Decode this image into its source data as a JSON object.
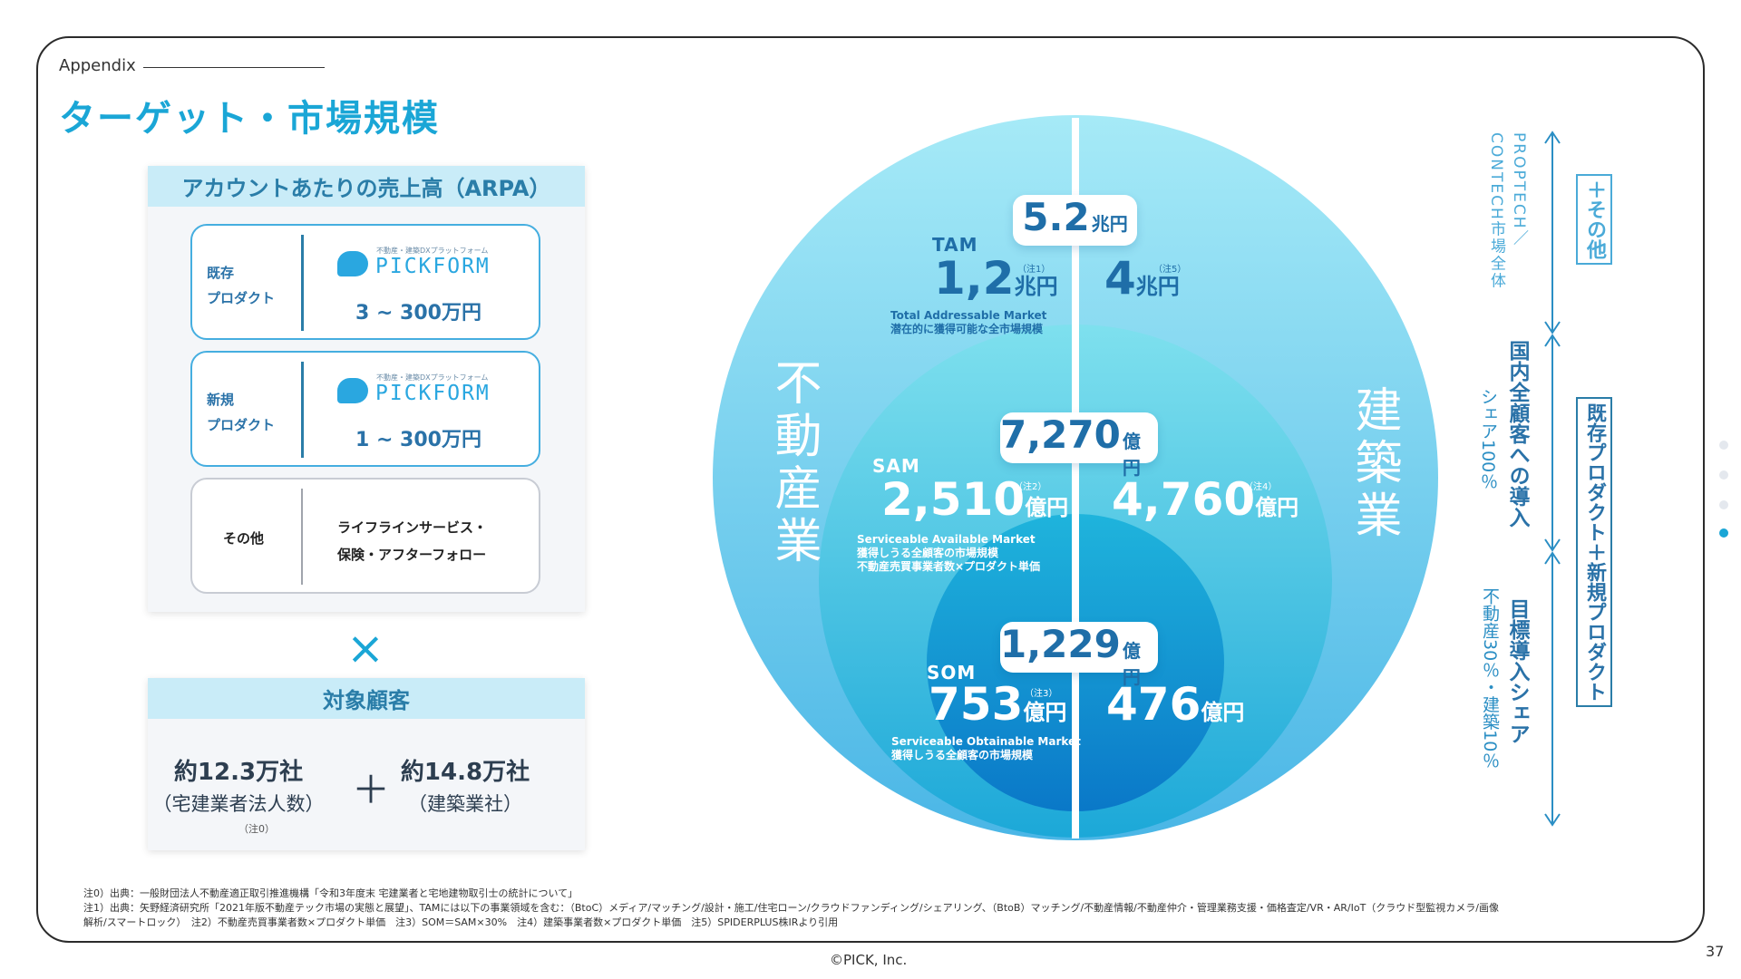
{
  "header": {
    "appendix": "Appendix",
    "title": "ターゲット・市場規模"
  },
  "arpa": {
    "heading": "アカウントあたりの売上高（ARPA）",
    "products": [
      {
        "label_line1": "既存",
        "label_line2": "プロダクト",
        "tagline": "不動産・建築DXプラットフォーム",
        "brand": "PICKFORM",
        "price": "3 ~ 300万円"
      },
      {
        "label_line1": "新規",
        "label_line2": "プロダクト",
        "tagline": "不動産・建築DXプラットフォーム",
        "brand": "PICKFORM",
        "price": "1 ~ 300万円"
      }
    ],
    "other": {
      "label": "その他",
      "desc_line1": "ライフラインサービス・",
      "desc_line2": "保険・アフターフォロー"
    }
  },
  "times_symbol": "×",
  "customers": {
    "heading": "対象顧客",
    "left_value": "約12.3万社",
    "left_sub": "（宅建業者法人数）",
    "left_note": "（注0）",
    "plus": "＋",
    "right_value": "約14.8万社",
    "right_sub": "（建築業社）"
  },
  "market": {
    "left_industry": "不動産業",
    "right_industry": "建築業",
    "tam": {
      "label": "TAM",
      "total": "5.2",
      "total_unit": "兆円",
      "left": "1,2",
      "left_unit": "兆円",
      "left_note": "（注1）",
      "right": "4",
      "right_unit": "兆円",
      "right_note": "（注5）",
      "desc1": "Total Addressable Market",
      "desc2": "潜在的に獲得可能な全市場規模"
    },
    "sam": {
      "label": "SAM",
      "total": "7,270",
      "total_unit": "億円",
      "left": "2,510",
      "left_unit": "億円",
      "left_note": "（注2）",
      "right": "4,760",
      "right_unit": "億円",
      "right_note": "（注4）",
      "desc1": "Serviceable Available Market",
      "desc2": "獲得しうる全顧客の市場規模",
      "desc3": "不動産売買事業者数×プロダクト単価"
    },
    "som": {
      "label": "SOM",
      "total": "1,229",
      "total_unit": "億円",
      "left": "753",
      "left_unit": "億円",
      "left_note": "（注3）",
      "right": "476",
      "right_unit": "億円",
      "desc1": "Serviceable Obtainable Market",
      "desc2": "獲得しうる全顧客の市場規模"
    }
  },
  "side": {
    "contech": "CONTECH市場全体",
    "proptech": "PROPTECH／",
    "plus_other": "＋その他",
    "share100": "シェア100％",
    "domestic": "国内全顧客への導入",
    "existing_new": "既存プロダクト＋新規プロダクト",
    "share_target": "不動産30％・建築10％",
    "target": "目標導入シェア"
  },
  "footnotes": {
    "line1": "注0）出典：一般財団法人不動産適正取引推進機構「令和3年度末 宅建業者と宅地建物取引士の統計について」",
    "line2": "注1）出典：矢野経済研究所「2021年版不動産テック市場の実態と展望」、TAMには以下の事業領域を含む：（BtoC）メディア/マッチング/設計・施工/住宅ローン/クラウドファンディング/シェアリング、（BtoB）マッチング/不動産情報/不動産仲介・管理業務支援・価格査定/VR・AR/IoT（クラウド型監視カメラ/画像",
    "line3": "解析/スマートロック）　注2）不動産売買事業者数×プロダクト単価　注3）SOM＝SAM×30%　注4）建築事業者数×プロダクト単価　注5）SPIDERPLUS株IRより引用"
  },
  "copyright": "©PICK, Inc.",
  "page_number": "37",
  "colors": {
    "accent": "#1aa6d6",
    "dark_blue": "#1f6ea8"
  }
}
